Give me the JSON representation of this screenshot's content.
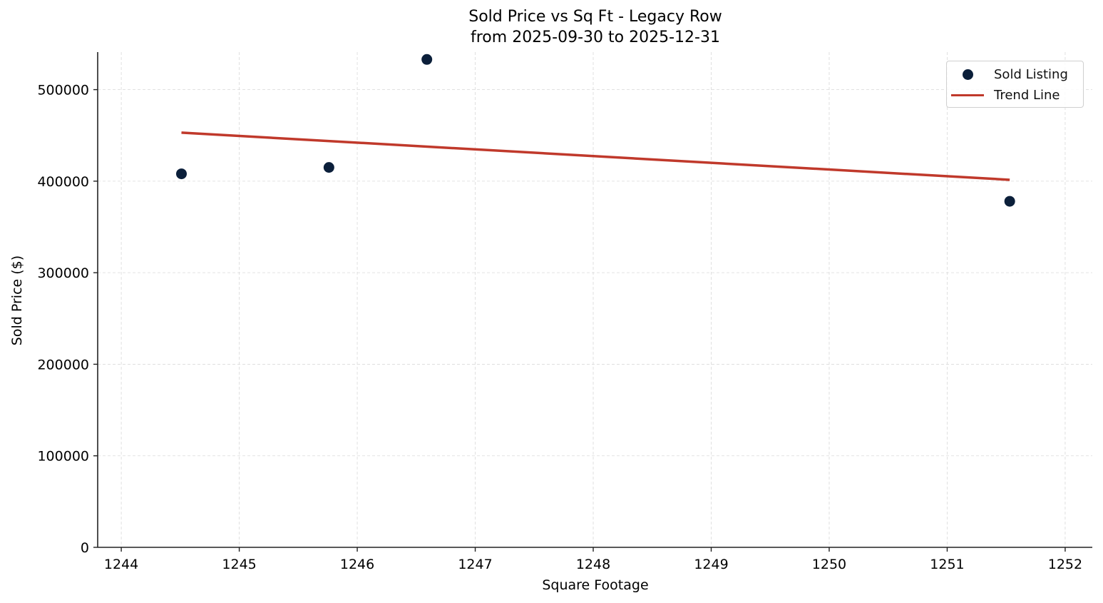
{
  "chart_data": {
    "type": "scatter",
    "title": "Sold Price vs Sq Ft - Legacy Row",
    "subtitle": "from 2025-09-30 to 2025-12-31",
    "xlabel": "Square Footage",
    "ylabel": "Sold Price ($)",
    "xlim": [
      1243.8,
      1252.23
    ],
    "ylim": [
      0,
      541000
    ],
    "xticks": [
      1244,
      1245,
      1246,
      1247,
      1248,
      1249,
      1250,
      1251,
      1252
    ],
    "yticks": [
      0,
      100000,
      200000,
      300000,
      400000,
      500000
    ],
    "grid": true,
    "legend_position": "upper right",
    "series": [
      {
        "name": "Sold Listing",
        "kind": "scatter",
        "color": "#0b1f3a",
        "points": [
          {
            "x": 1244.51,
            "y": 408000
          },
          {
            "x": 1245.76,
            "y": 415000
          },
          {
            "x": 1246.59,
            "y": 533000
          },
          {
            "x": 1251.53,
            "y": 378000
          }
        ]
      },
      {
        "name": "Trend Line",
        "kind": "line",
        "color": "#c0392b",
        "points": [
          {
            "x": 1244.51,
            "y": 453000
          },
          {
            "x": 1251.53,
            "y": 401500
          }
        ]
      }
    ]
  },
  "legend": {
    "items": [
      {
        "label": "Sold Listing"
      },
      {
        "label": "Trend Line"
      }
    ]
  }
}
